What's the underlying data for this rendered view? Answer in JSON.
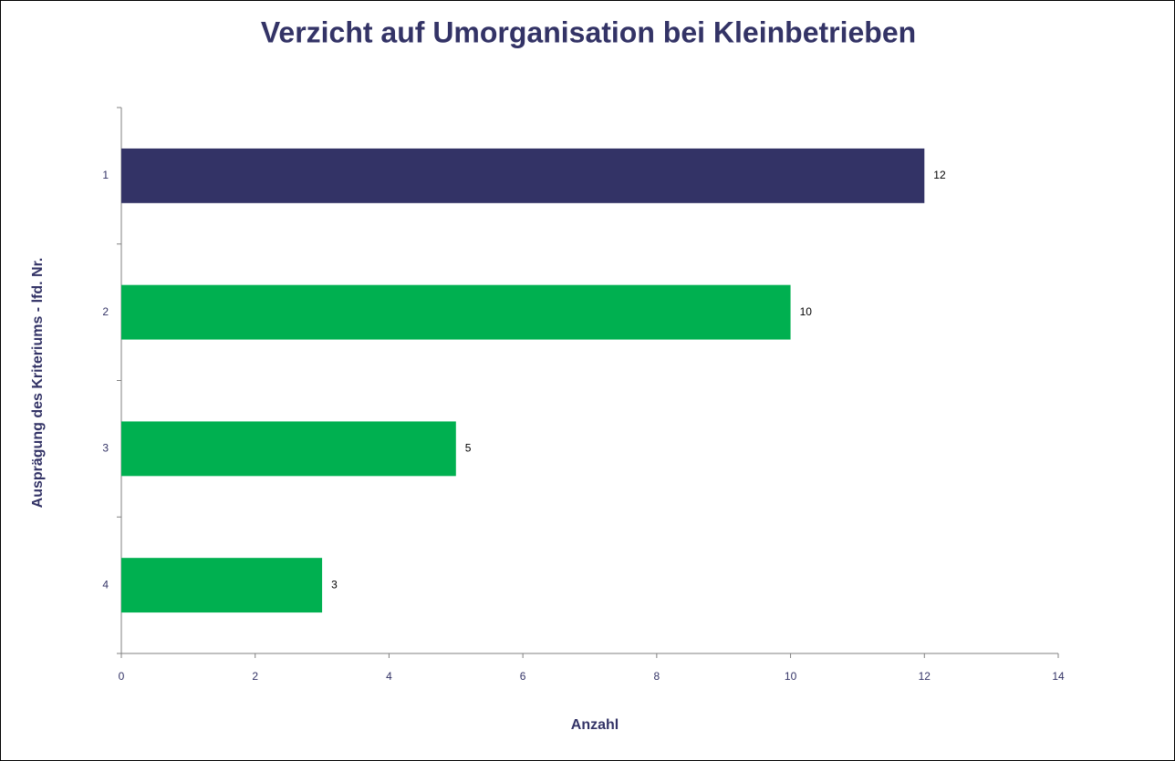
{
  "chart_data": {
    "type": "hbar",
    "title": "Verzicht auf Umorganisation bei Kleinbetrieben",
    "x_label": "Anzahl",
    "y_label": "Ausprägung des Kriteriums - lfd. Nr.",
    "categories": [
      "1",
      "2",
      "3",
      "4"
    ],
    "values": [
      12,
      10,
      5,
      3
    ],
    "colors": [
      "#333366",
      "#00b050",
      "#00b050",
      "#00b050"
    ],
    "xlim": [
      0,
      14
    ],
    "xticks": [
      0,
      2,
      4,
      6,
      8,
      10,
      12,
      14
    ],
    "data_labels": true
  }
}
